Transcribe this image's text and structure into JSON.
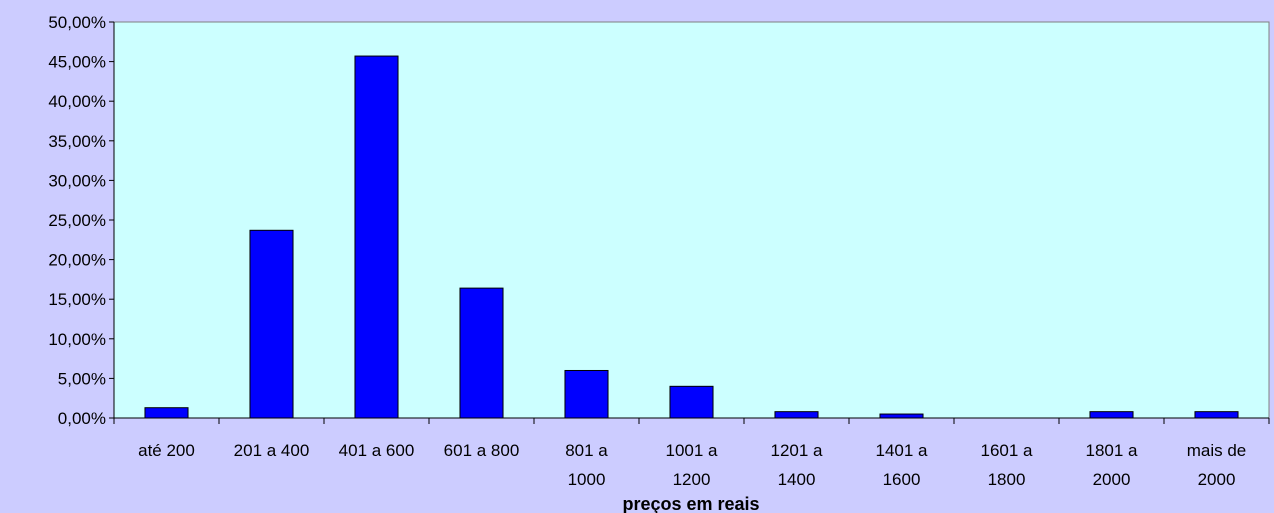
{
  "colors": {
    "background": "#ccccff",
    "plot_area": "#ccffff",
    "bar_fill": "#0000ff",
    "bar_stroke": "#000000"
  },
  "chart_data": {
    "type": "bar",
    "title": "",
    "xlabel": "preços em reais",
    "ylabel": "",
    "ylim": [
      0,
      50
    ],
    "yticks": [
      "0,00%",
      "5,00%",
      "10,00%",
      "15,00%",
      "20,00%",
      "25,00%",
      "30,00%",
      "35,00%",
      "40,00%",
      "45,00%",
      "50,00%"
    ],
    "categories": [
      [
        "até 200"
      ],
      [
        "201 a 400"
      ],
      [
        "401 a 600"
      ],
      [
        "601 a 800"
      ],
      [
        "801 a",
        "1000"
      ],
      [
        "1001 a",
        "1200"
      ],
      [
        "1201 a",
        "1400"
      ],
      [
        "1401 a",
        "1600"
      ],
      [
        "1601 a",
        "1800"
      ],
      [
        "1801 a",
        "2000"
      ],
      [
        "mais de",
        "2000"
      ]
    ],
    "values": [
      1.3,
      23.7,
      45.7,
      16.4,
      6.0,
      4.0,
      0.8,
      0.5,
      0.0,
      0.8,
      0.8
    ],
    "grid": false,
    "legend": "none"
  }
}
